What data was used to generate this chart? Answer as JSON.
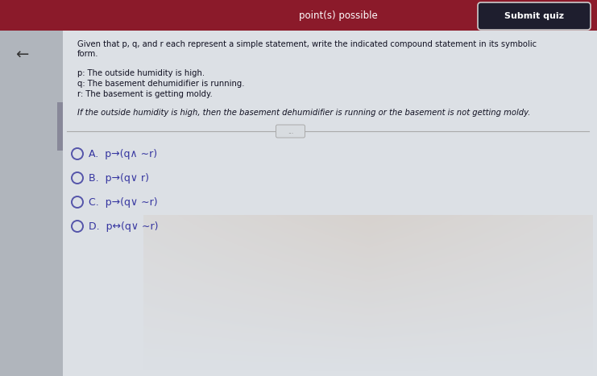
{
  "title_bar_color": "#8B1A2A",
  "bg_color": "#c2c8cf",
  "panel_color": "#dce0e5",
  "header_text": "point(s) possible",
  "submit_btn_text": "Submit quiz",
  "back_arrow": "←",
  "question_intro_line1": "Given that p, q, and r each represent a simple statement, write the indicated compound statement in its symbolic",
  "question_intro_line2": "form.",
  "p_def": "p: The outside humidity is high.",
  "q_def": "q: The basement dehumidifier is running.",
  "r_def": "r: The basement is getting moldy.",
  "statement": "If the outside humidity is high, then the basement dehumidifier is running or the basement is not getting moldy.",
  "choices": [
    "A.  p→(q∧ ∼r)",
    "B.  p→(q∨ r)",
    "C.  p→(q∨ ∼r)",
    "D.  p↔(q∨ ∼r)"
  ],
  "choice_color": "#3535a0",
  "text_color": "#111122",
  "separator_color": "#aaaaaa",
  "radio_color": "#5555aa",
  "sidebar_color": "#b0b5bc",
  "dark_sidebar_rect": "#888899",
  "submit_btn_bg": "#1e1e2e",
  "submit_btn_border": "#cccccc"
}
